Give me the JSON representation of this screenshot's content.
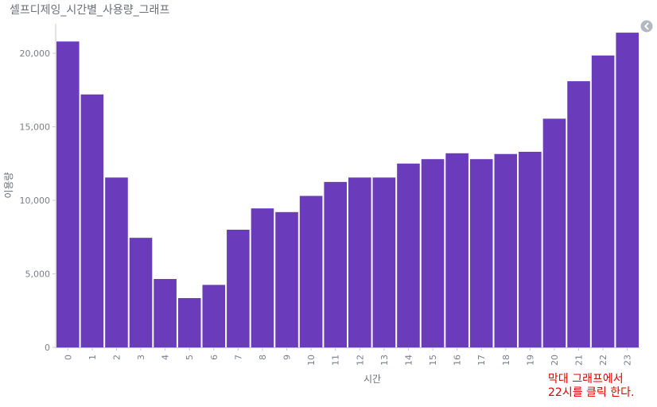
{
  "chart_data": {
    "type": "bar",
    "title": "셀프디제잉_시간별_사용량_그래프",
    "xlabel": "시간",
    "ylabel": "이용량",
    "categories": [
      "0",
      "1",
      "2",
      "3",
      "4",
      "5",
      "6",
      "7",
      "8",
      "9",
      "10",
      "11",
      "12",
      "13",
      "14",
      "15",
      "16",
      "17",
      "18",
      "19",
      "20",
      "21",
      "22",
      "23"
    ],
    "values": [
      20800,
      17200,
      11550,
      7450,
      4650,
      3350,
      4250,
      8000,
      9450,
      9200,
      10300,
      11250,
      11550,
      11550,
      12500,
      12800,
      13200,
      12800,
      13150,
      13300,
      15550,
      18100,
      19850,
      21400
    ],
    "yticks": [
      0,
      5000,
      10000,
      15000,
      20000
    ],
    "ytick_labels": [
      "0",
      "5,000",
      "10,000",
      "15,000",
      "20,000"
    ],
    "ylim": [
      0,
      22000
    ],
    "bar_color": "#6a3cbc",
    "grid": false,
    "legend": "none"
  },
  "annotation": {
    "line1": "막대 그래프에서",
    "line2": "22시를 클릭 한다.",
    "color": "#e00000"
  },
  "icons": {
    "collapse": "chevron-left-icon"
  }
}
